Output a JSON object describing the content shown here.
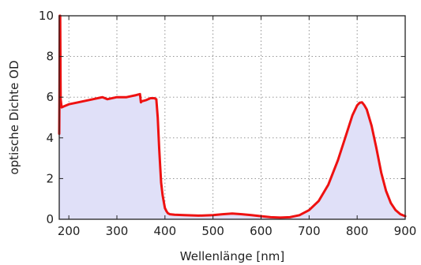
{
  "chart_data": {
    "type": "area",
    "xlabel": "Wellenlänge [nm]",
    "ylabel": "optische Dichte OD",
    "xlim": [
      180,
      900
    ],
    "ylim": [
      0,
      10
    ],
    "xticks": [
      200,
      300,
      400,
      500,
      600,
      700,
      800,
      900
    ],
    "yticks": [
      0,
      2,
      4,
      6,
      8,
      10
    ],
    "grid": true,
    "grid_style": "dotted",
    "legend": "none",
    "colors": {
      "line": "#ee1111",
      "fill": "#e0e0f8",
      "grid": "#888888",
      "axis": "#222222"
    },
    "series": [
      {
        "x": [
          180,
          180.5,
          181,
          182,
          183,
          185,
          190,
          200,
          220,
          250,
          270,
          280,
          300,
          320,
          340,
          348,
          350,
          352,
          360,
          370,
          378,
          382,
          385,
          388,
          390,
          392,
          395,
          398,
          400,
          403,
          406,
          410,
          420,
          440,
          470,
          500,
          520,
          540,
          560,
          580,
          600,
          620,
          640,
          660,
          680,
          700,
          720,
          740,
          760,
          775,
          790,
          800,
          805,
          810,
          815,
          820,
          830,
          840,
          850,
          860,
          870,
          880,
          890,
          900
        ],
        "y": [
          4.2,
          6.2,
          10,
          10,
          5.9,
          5.5,
          5.55,
          5.65,
          5.75,
          5.9,
          6.0,
          5.9,
          6.0,
          6.0,
          6.1,
          6.15,
          5.75,
          5.8,
          5.85,
          5.95,
          5.95,
          5.9,
          5.0,
          3.5,
          2.6,
          1.8,
          1.2,
          0.8,
          0.55,
          0.4,
          0.3,
          0.25,
          0.22,
          0.2,
          0.18,
          0.2,
          0.25,
          0.28,
          0.25,
          0.2,
          0.15,
          0.1,
          0.08,
          0.1,
          0.2,
          0.45,
          0.9,
          1.7,
          2.9,
          4.0,
          5.1,
          5.6,
          5.72,
          5.75,
          5.6,
          5.4,
          4.6,
          3.5,
          2.3,
          1.4,
          0.8,
          0.45,
          0.25,
          0.15
        ]
      }
    ]
  }
}
